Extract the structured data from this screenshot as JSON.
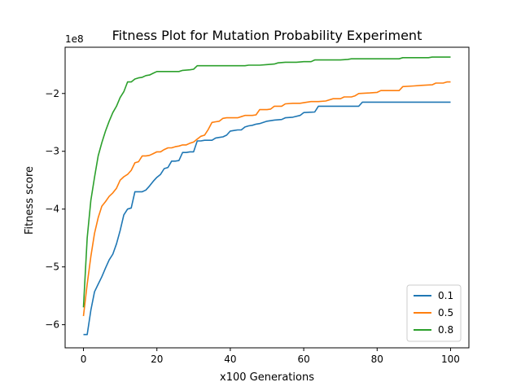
{
  "chart_data": {
    "type": "line",
    "title": "Fitness Plot for Mutation Probability Experiment",
    "xlabel": "x100 Generations",
    "ylabel": "Fitness score",
    "y_offset_label": "1e8",
    "y_scale_factor": 100000000,
    "xlim": [
      -5,
      105
    ],
    "ylim": [
      -6.4,
      -1.2
    ],
    "xticks": [
      0,
      20,
      40,
      60,
      80,
      100
    ],
    "xtick_labels": [
      "0",
      "20",
      "40",
      "60",
      "80",
      "100"
    ],
    "yticks": [
      -6,
      -5,
      -4,
      -3,
      -2
    ],
    "ytick_labels": [
      "−6",
      "−5",
      "−4",
      "−3",
      "−2"
    ],
    "grid": false,
    "legend_position": "lower-right",
    "series": [
      {
        "name": "0.1",
        "color": "#1f77b4",
        "points": [
          [
            0,
            -6.17
          ],
          [
            1,
            -6.17
          ],
          [
            2,
            -5.75
          ],
          [
            3,
            -5.43
          ],
          [
            4,
            -5.3
          ],
          [
            5,
            -5.17
          ],
          [
            6,
            -5.02
          ],
          [
            7,
            -4.88
          ],
          [
            8,
            -4.78
          ],
          [
            9,
            -4.6
          ],
          [
            10,
            -4.37
          ],
          [
            11,
            -4.1
          ],
          [
            12,
            -4.0
          ],
          [
            13,
            -3.98
          ],
          [
            14,
            -3.7
          ],
          [
            15,
            -3.7
          ],
          [
            16,
            -3.7
          ],
          [
            17,
            -3.67
          ],
          [
            18,
            -3.6
          ],
          [
            19,
            -3.52
          ],
          [
            20,
            -3.45
          ],
          [
            21,
            -3.4
          ],
          [
            22,
            -3.3
          ],
          [
            23,
            -3.28
          ],
          [
            24,
            -3.17
          ],
          [
            25,
            -3.17
          ],
          [
            26,
            -3.16
          ],
          [
            27,
            -3.02
          ],
          [
            28,
            -3.02
          ],
          [
            29,
            -3.01
          ],
          [
            30,
            -3.01
          ],
          [
            31,
            -2.82
          ],
          [
            32,
            -2.82
          ],
          [
            33,
            -2.81
          ],
          [
            34,
            -2.81
          ],
          [
            35,
            -2.81
          ],
          [
            36,
            -2.77
          ],
          [
            37,
            -2.76
          ],
          [
            38,
            -2.75
          ],
          [
            39,
            -2.72
          ],
          [
            40,
            -2.65
          ],
          [
            41,
            -2.64
          ],
          [
            42,
            -2.63
          ],
          [
            43,
            -2.63
          ],
          [
            44,
            -2.58
          ],
          [
            45,
            -2.56
          ],
          [
            46,
            -2.55
          ],
          [
            47,
            -2.53
          ],
          [
            48,
            -2.52
          ],
          [
            50,
            -2.48
          ],
          [
            52,
            -2.46
          ],
          [
            54,
            -2.45
          ],
          [
            55,
            -2.42
          ],
          [
            57,
            -2.41
          ],
          [
            59,
            -2.38
          ],
          [
            60,
            -2.33
          ],
          [
            63,
            -2.32
          ],
          [
            64,
            -2.22
          ],
          [
            66,
            -2.22
          ],
          [
            68,
            -2.22
          ],
          [
            70,
            -2.22
          ],
          [
            72,
            -2.22
          ],
          [
            74,
            -2.22
          ],
          [
            75,
            -2.22
          ],
          [
            76,
            -2.15
          ],
          [
            80,
            -2.15
          ],
          [
            85,
            -2.15
          ],
          [
            90,
            -2.15
          ],
          [
            95,
            -2.15
          ],
          [
            100,
            -2.15
          ]
        ]
      },
      {
        "name": "0.5",
        "color": "#ff7f0e",
        "points": [
          [
            0,
            -5.85
          ],
          [
            1,
            -5.3
          ],
          [
            2,
            -4.82
          ],
          [
            3,
            -4.42
          ],
          [
            4,
            -4.15
          ],
          [
            5,
            -3.95
          ],
          [
            6,
            -3.87
          ],
          [
            7,
            -3.78
          ],
          [
            8,
            -3.72
          ],
          [
            9,
            -3.64
          ],
          [
            10,
            -3.5
          ],
          [
            11,
            -3.44
          ],
          [
            12,
            -3.4
          ],
          [
            13,
            -3.33
          ],
          [
            14,
            -3.2
          ],
          [
            15,
            -3.18
          ],
          [
            16,
            -3.08
          ],
          [
            17,
            -3.08
          ],
          [
            18,
            -3.07
          ],
          [
            19,
            -3.04
          ],
          [
            20,
            -3.01
          ],
          [
            21,
            -3.01
          ],
          [
            22,
            -2.97
          ],
          [
            23,
            -2.94
          ],
          [
            24,
            -2.94
          ],
          [
            25,
            -2.92
          ],
          [
            26,
            -2.91
          ],
          [
            27,
            -2.89
          ],
          [
            28,
            -2.89
          ],
          [
            29,
            -2.86
          ],
          [
            30,
            -2.84
          ],
          [
            31,
            -2.79
          ],
          [
            32,
            -2.74
          ],
          [
            33,
            -2.72
          ],
          [
            34,
            -2.62
          ],
          [
            35,
            -2.5
          ],
          [
            36,
            -2.49
          ],
          [
            37,
            -2.48
          ],
          [
            38,
            -2.43
          ],
          [
            39,
            -2.42
          ],
          [
            40,
            -2.42
          ],
          [
            42,
            -2.42
          ],
          [
            43,
            -2.4
          ],
          [
            44,
            -2.38
          ],
          [
            46,
            -2.38
          ],
          [
            47,
            -2.37
          ],
          [
            48,
            -2.28
          ],
          [
            50,
            -2.28
          ],
          [
            51,
            -2.27
          ],
          [
            52,
            -2.22
          ],
          [
            54,
            -2.22
          ],
          [
            55,
            -2.18
          ],
          [
            57,
            -2.17
          ],
          [
            59,
            -2.17
          ],
          [
            60,
            -2.16
          ],
          [
            62,
            -2.14
          ],
          [
            64,
            -2.14
          ],
          [
            66,
            -2.13
          ],
          [
            68,
            -2.09
          ],
          [
            70,
            -2.09
          ],
          [
            71,
            -2.06
          ],
          [
            73,
            -2.06
          ],
          [
            74,
            -2.04
          ],
          [
            75,
            -2.0
          ],
          [
            78,
            -1.99
          ],
          [
            80,
            -1.98
          ],
          [
            81,
            -1.95
          ],
          [
            84,
            -1.95
          ],
          [
            86,
            -1.95
          ],
          [
            87,
            -1.88
          ],
          [
            90,
            -1.87
          ],
          [
            92,
            -1.86
          ],
          [
            95,
            -1.85
          ],
          [
            96,
            -1.82
          ],
          [
            98,
            -1.82
          ],
          [
            99,
            -1.8
          ],
          [
            100,
            -1.8
          ]
        ]
      },
      {
        "name": "0.8",
        "color": "#2ca02c",
        "points": [
          [
            0,
            -5.7
          ],
          [
            1,
            -4.5
          ],
          [
            2,
            -3.85
          ],
          [
            3,
            -3.45
          ],
          [
            4,
            -3.08
          ],
          [
            5,
            -2.85
          ],
          [
            6,
            -2.65
          ],
          [
            7,
            -2.48
          ],
          [
            8,
            -2.33
          ],
          [
            9,
            -2.22
          ],
          [
            10,
            -2.07
          ],
          [
            11,
            -1.97
          ],
          [
            12,
            -1.8
          ],
          [
            13,
            -1.8
          ],
          [
            14,
            -1.75
          ],
          [
            15,
            -1.73
          ],
          [
            16,
            -1.72
          ],
          [
            17,
            -1.69
          ],
          [
            18,
            -1.68
          ],
          [
            19,
            -1.65
          ],
          [
            20,
            -1.62
          ],
          [
            22,
            -1.62
          ],
          [
            24,
            -1.62
          ],
          [
            26,
            -1.62
          ],
          [
            27,
            -1.6
          ],
          [
            29,
            -1.59
          ],
          [
            30,
            -1.58
          ],
          [
            31,
            -1.52
          ],
          [
            34,
            -1.52
          ],
          [
            36,
            -1.52
          ],
          [
            38,
            -1.52
          ],
          [
            40,
            -1.52
          ],
          [
            42,
            -1.52
          ],
          [
            44,
            -1.52
          ],
          [
            45,
            -1.51
          ],
          [
            48,
            -1.51
          ],
          [
            50,
            -1.5
          ],
          [
            52,
            -1.49
          ],
          [
            53,
            -1.47
          ],
          [
            55,
            -1.46
          ],
          [
            58,
            -1.46
          ],
          [
            60,
            -1.45
          ],
          [
            62,
            -1.45
          ],
          [
            63,
            -1.42
          ],
          [
            66,
            -1.42
          ],
          [
            70,
            -1.42
          ],
          [
            72,
            -1.41
          ],
          [
            73,
            -1.4
          ],
          [
            76,
            -1.4
          ],
          [
            80,
            -1.4
          ],
          [
            84,
            -1.4
          ],
          [
            86,
            -1.4
          ],
          [
            87,
            -1.38
          ],
          [
            90,
            -1.38
          ],
          [
            94,
            -1.38
          ],
          [
            95,
            -1.37
          ],
          [
            98,
            -1.37
          ],
          [
            100,
            -1.37
          ]
        ]
      }
    ]
  }
}
